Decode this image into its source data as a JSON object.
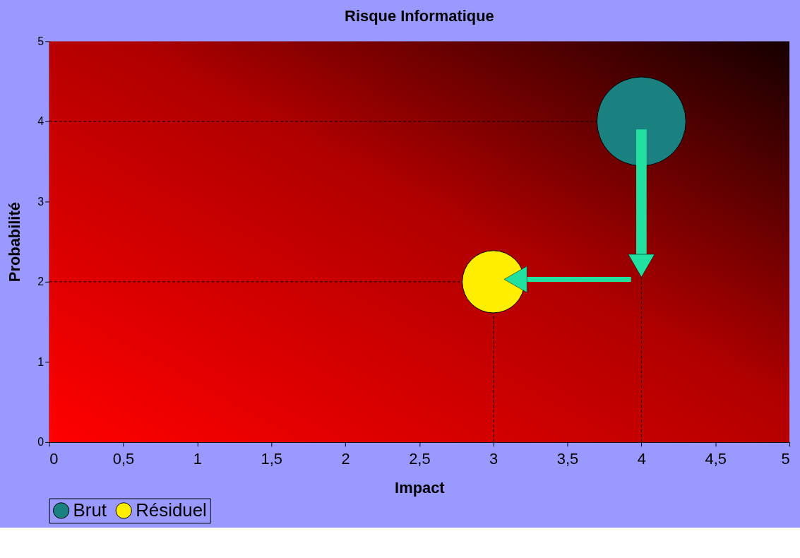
{
  "chart_data": {
    "type": "bubble",
    "title": "Risque Informatique",
    "xlabel": "Impact",
    "ylabel": "Probabilité",
    "series": [
      {
        "name": "Brut",
        "color": "#1a8080",
        "x": [
          4
        ],
        "values": [
          4
        ],
        "sizes": [
          1
        ]
      },
      {
        "name": "Résiduel",
        "color": "#ffee00",
        "x": [
          3
        ],
        "values": [
          2
        ],
        "sizes": [
          0.49
        ]
      }
    ],
    "xlim": [
      0,
      5
    ],
    "ylim": [
      0,
      5
    ],
    "xticks": [
      0,
      {
        "value": 0.5,
        "label": "0,5"
      },
      1,
      {
        "value": 1.5,
        "label": "1,5"
      },
      2,
      {
        "value": 2.5,
        "label": "2,5"
      },
      3,
      {
        "value": 3.5,
        "label": "3,5"
      },
      4,
      {
        "value": 4.5,
        "label": "4,5"
      },
      5
    ],
    "yticks": [
      0,
      1,
      2,
      3,
      4,
      5
    ],
    "ref_lines": [
      {
        "axis": "x",
        "value": 3,
        "color": "#000000",
        "line_style": "dashed"
      },
      {
        "axis": "x",
        "value": 4,
        "color": "#000000",
        "line_style": "dashed"
      },
      {
        "axis": "y",
        "value": 2,
        "color": "#000000",
        "line_style": "dashed"
      },
      {
        "axis": "y",
        "value": 4,
        "color": "#000000",
        "line_style": "dashed"
      }
    ],
    "grid": false,
    "legend": "bottom",
    "marker": "circle"
  }
}
